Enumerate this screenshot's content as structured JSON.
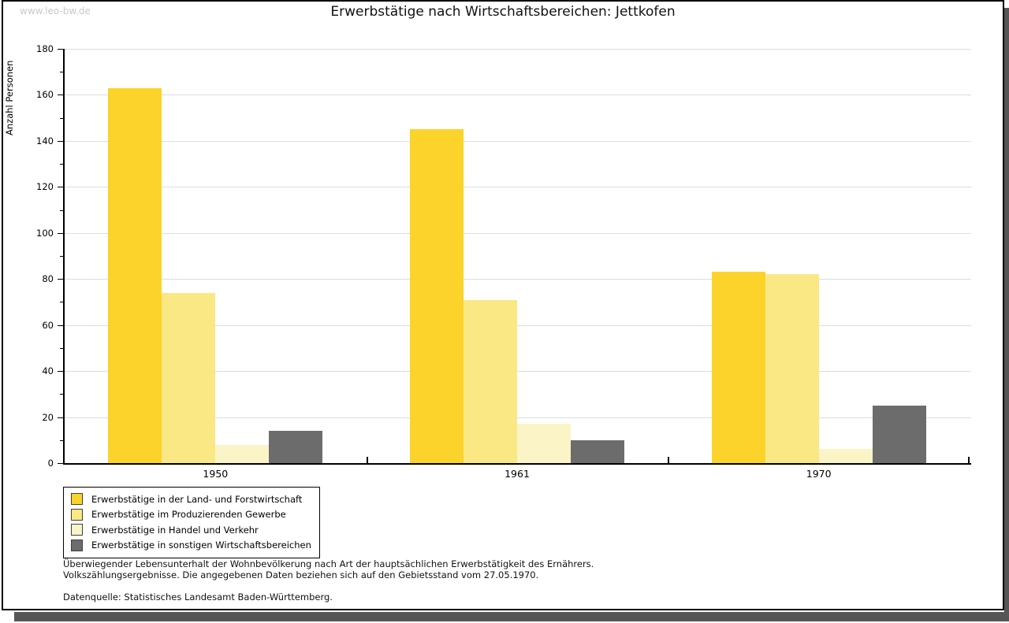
{
  "watermark": "www.leo-bw.de",
  "title": "Erwerbstätige nach Wirtschaftsbereichen: Jettkofen",
  "chart_data": {
    "type": "bar",
    "title": "Erwerbstätige nach Wirtschaftsbereichen: Jettkofen",
    "ylabel": "Anzahl Personen",
    "xlabel": "",
    "ylim": [
      0,
      180
    ],
    "ytick_step": 20,
    "yminor_step": 10,
    "grid": true,
    "legend_position": "bottom-left",
    "categories": [
      "1950",
      "1961",
      "1970"
    ],
    "series": [
      {
        "name": "Erwerbstätige in der Land- und Forstwirtschaft",
        "color": "#FCD32B",
        "values": [
          163,
          145,
          83
        ]
      },
      {
        "name": "Erwerbstätige im Produzierenden Gewerbe",
        "color": "#FAE885",
        "values": [
          74,
          71,
          82
        ]
      },
      {
        "name": "Erwerbstätige in Handel und Verkehr",
        "color": "#FBF4C6",
        "values": [
          8,
          17,
          6
        ]
      },
      {
        "name": "Erwerbstätige in sonstigen Wirtschaftsbereichen",
        "color": "#6C6C6C",
        "values": [
          14,
          10,
          25
        ]
      }
    ]
  },
  "footnote": {
    "line1": "Überwiegender Lebensunterhalt der Wohnbevölkerung nach Art der hauptsächlichen Erwerbstätigkeit des Ernährers.",
    "line2": "Volkszählungsergebnisse. Die angegebenen Daten beziehen sich auf den Gebietsstand vom 27.05.1970."
  },
  "source": "Datenquelle: Statistisches Landesamt Baden-Württemberg."
}
